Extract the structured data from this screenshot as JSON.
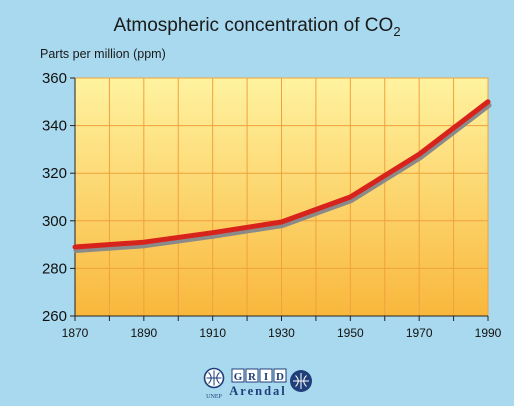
{
  "chart_data": {
    "type": "line",
    "title": "Atmospheric concentration of CO",
    "title_subscript": "2",
    "ylabel": "Parts per million (ppm)",
    "xlabel": "",
    "x": [
      1870,
      1890,
      1910,
      1930,
      1950,
      1970,
      1990
    ],
    "series": [
      {
        "values": [
          289,
          291,
          295,
          299.5,
          310,
          328,
          350
        ]
      }
    ],
    "xlim": [
      1870,
      1990
    ],
    "ylim": [
      260,
      360
    ],
    "xticks": [
      "1870",
      "1890",
      "1910",
      "1930",
      "1950",
      "1970",
      "1990"
    ],
    "yticks": [
      "260",
      "280",
      "300",
      "320",
      "340",
      "360"
    ],
    "grid": true
  },
  "colors": {
    "page_background": "#a9d9ee",
    "plot_top": "#fff3a0",
    "plot_bottom": "#f9b73c",
    "grid": "#f0a23c",
    "series_line": "#d8231c",
    "series_shadow": "#8a8a8a",
    "logo": "#1f3f7a"
  },
  "logos": {
    "unep": "UNEP",
    "grid_letters": [
      "G",
      "R",
      "I",
      "D"
    ],
    "grid_subtitle": "Arendal"
  }
}
